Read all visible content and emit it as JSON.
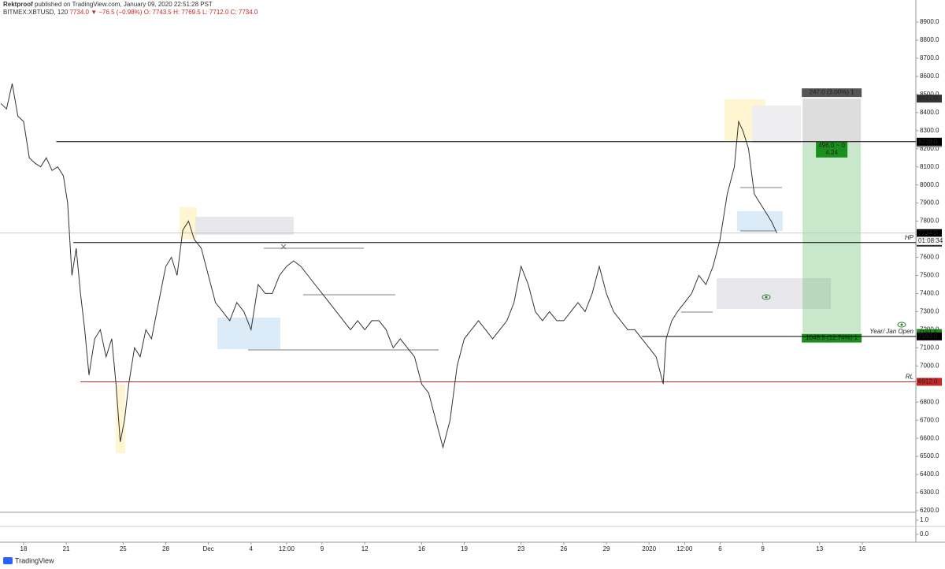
{
  "header": {
    "author": "Rektproof",
    "published": "published on TradingView.com, January 09, 2020 22:51:28 PST",
    "symbol": "BITMEX:XBTUSD, 120",
    "last": "7734.0",
    "change": "▼ −76.5 (−0.98%)",
    "ohlc": [
      "O: 7743.5",
      "H: 7769.5",
      "L: 7712.0",
      "C: 7734.0"
    ]
  },
  "footer": {
    "brand": "TradingView"
  },
  "chart_data": {
    "type": "line",
    "color": "#333333",
    "x": [
      -1.6,
      -1.2,
      -0.8,
      -0.4,
      0,
      0.4,
      0.8,
      1.2,
      1.6,
      2,
      2.4,
      2.8,
      3.1,
      3.4,
      3.7,
      4,
      4.3,
      4.6,
      5,
      5.4,
      5.8,
      6.2,
      6.5,
      6.8,
      7.1,
      7.4,
      7.8,
      8.2,
      8.6,
      9,
      9.5,
      10,
      10.4,
      10.8,
      11.2,
      11.6,
      12,
      12.5,
      13,
      13.5,
      14,
      14.5,
      15,
      15.5,
      16,
      16.5,
      17,
      17.5,
      18,
      18.5,
      19,
      19.5,
      20,
      20.5,
      21,
      21.5,
      22,
      22.5,
      23,
      23.5,
      24,
      24.5,
      25,
      25.5,
      26,
      26.5,
      27,
      27.5,
      28,
      28.5,
      29,
      29.5,
      30,
      30.5,
      31,
      31.5,
      32,
      32.5,
      33,
      33.5,
      34,
      34.5,
      35,
      35.5,
      36,
      36.5,
      37,
      37.5,
      38,
      38.5,
      39,
      39.5,
      40,
      40.5,
      41,
      41.5,
      42,
      42.5,
      43,
      43.5,
      44,
      44.5,
      45,
      45.2,
      45.6,
      46,
      46.5,
      47,
      47.5,
      48,
      48.5,
      49,
      49.5,
      50,
      50.3,
      50.6,
      51,
      51.4,
      51.8,
      52.2,
      52.6,
      53
    ],
    "values": [
      8450,
      8420,
      8560,
      8380,
      8350,
      8150,
      8120,
      8100,
      8150,
      8080,
      8100,
      8050,
      7900,
      7500,
      7650,
      7400,
      7200,
      6950,
      7150,
      7200,
      7050,
      7150,
      6900,
      6580,
      6700,
      6900,
      7100,
      7050,
      7200,
      7150,
      7350,
      7550,
      7600,
      7500,
      7750,
      7800,
      7700,
      7650,
      7500,
      7350,
      7300,
      7250,
      7350,
      7300,
      7200,
      7450,
      7400,
      7400,
      7500,
      7550,
      7580,
      7550,
      7500,
      7450,
      7400,
      7350,
      7300,
      7250,
      7200,
      7250,
      7200,
      7250,
      7250,
      7200,
      7100,
      7150,
      7100,
      7050,
      6900,
      6850,
      6700,
      6550,
      6700,
      7000,
      7150,
      7200,
      7250,
      7200,
      7150,
      7200,
      7250,
      7350,
      7550,
      7450,
      7300,
      7250,
      7300,
      7250,
      7250,
      7300,
      7350,
      7300,
      7400,
      7550,
      7400,
      7300,
      7250,
      7200,
      7200,
      7150,
      7100,
      7050,
      6900,
      7150,
      7250,
      7300,
      7350,
      7400,
      7500,
      7450,
      7550,
      7700,
      7950,
      8100,
      8350,
      8300,
      8200,
      7950,
      7900,
      7850,
      7800,
      7734
    ],
    "xlim": [
      -1.66,
      62.77
    ],
    "ylim": [
      6200,
      8900
    ],
    "xticks": [
      {
        "value": 0,
        "label": "18"
      },
      {
        "value": 3,
        "label": "21"
      },
      {
        "value": 7,
        "label": "25"
      },
      {
        "value": 10,
        "label": "28"
      },
      {
        "value": 13,
        "label": "Dec"
      },
      {
        "value": 16,
        "label": "4"
      },
      {
        "value": 18.5,
        "label": "12:00"
      },
      {
        "value": 21,
        "label": "9"
      },
      {
        "value": 24,
        "label": "12"
      },
      {
        "value": 28,
        "label": "16"
      },
      {
        "value": 31,
        "label": "19"
      },
      {
        "value": 35,
        "label": "23"
      },
      {
        "value": 38,
        "label": "26"
      },
      {
        "value": 41,
        "label": "29"
      },
      {
        "value": 44,
        "label": "2020"
      },
      {
        "value": 46.5,
        "label": "12:00"
      },
      {
        "value": 49,
        "label": "6"
      },
      {
        "value": 52,
        "label": "9"
      },
      {
        "value": 56,
        "label": "13"
      },
      {
        "value": 59,
        "label": "16"
      }
    ],
    "yticks": [
      {
        "value": 6200,
        "label": "6200.0"
      },
      {
        "value": 6300,
        "label": "6300.0"
      },
      {
        "value": 6400,
        "label": "6400.0"
      },
      {
        "value": 6500,
        "label": "6500.0"
      },
      {
        "value": 6600,
        "label": "6600.0"
      },
      {
        "value": 6700,
        "label": "6700.0"
      },
      {
        "value": 6800,
        "label": "6800.0"
      },
      {
        "value": 6900,
        "label": "6900.0"
      },
      {
        "value": 7000,
        "label": "7000.0"
      },
      {
        "value": 7100,
        "label": "7100.0"
      },
      {
        "value": 7200,
        "label": "7200.0"
      },
      {
        "value": 7300,
        "label": "7300.0"
      },
      {
        "value": 7400,
        "label": "7400.0"
      },
      {
        "value": 7500,
        "label": "7500.0"
      },
      {
        "value": 7600,
        "label": "7600.0"
      },
      {
        "value": 7700,
        "label": "7700.0"
      },
      {
        "value": 7800,
        "label": "7800.0"
      },
      {
        "value": 7900,
        "label": "7900.0"
      },
      {
        "value": 8000,
        "label": "8000.0"
      },
      {
        "value": 8100,
        "label": "8100.0"
      },
      {
        "value": 8200,
        "label": "8200.0"
      },
      {
        "value": 8300,
        "label": "8300.0"
      },
      {
        "value": 8400,
        "label": "8400.0"
      },
      {
        "value": 8500,
        "label": "8500.0"
      },
      {
        "value": 8600,
        "label": "8600.0"
      },
      {
        "value": 8700,
        "label": "8700.0"
      },
      {
        "value": 8800,
        "label": "8800.0"
      },
      {
        "value": 8900,
        "label": "8900.0"
      }
    ],
    "grid": false,
    "last_price": {
      "value": 7734,
      "label": "7734.0",
      "countdown": "01:08:34"
    },
    "levels": [
      {
        "value": 8239,
        "label": "8239.0",
        "from": 2.3,
        "color": "#000000"
      },
      {
        "name": "HP",
        "value": 7682,
        "label": "7682.0",
        "from": 3.5,
        "color": "#000000"
      },
      {
        "name": "Year/ Jan Open",
        "value": 7163,
        "label": "7163.0",
        "from": 43.5,
        "color": "#000000"
      },
      {
        "name": "RL",
        "value": 6912,
        "label": "6912.0",
        "from": 4,
        "color": "#c62828"
      }
    ],
    "position": {
      "from": 54.8,
      "to": 58.9,
      "entry": 7181.5,
      "entry_label": "7181.5",
      "target": 8230,
      "target_label": "8230.0",
      "stop": 8477,
      "stop_label": "8477.0",
      "profit_text": "1048.5 (12.74%) 1",
      "risk_text": "247.0 (3.00%) 1",
      "ratio_text": [
        "496.0 ~ 0",
        "4.24"
      ],
      "profit_color": "#4caf50",
      "risk_color": "#9e9e9e"
    },
    "pane2_ylim": [
      -0.55,
      1.55
    ],
    "pane2_yticks": [
      {
        "value": 1,
        "label": "1.0"
      },
      {
        "value": 0,
        "label": "0.0"
      }
    ]
  }
}
